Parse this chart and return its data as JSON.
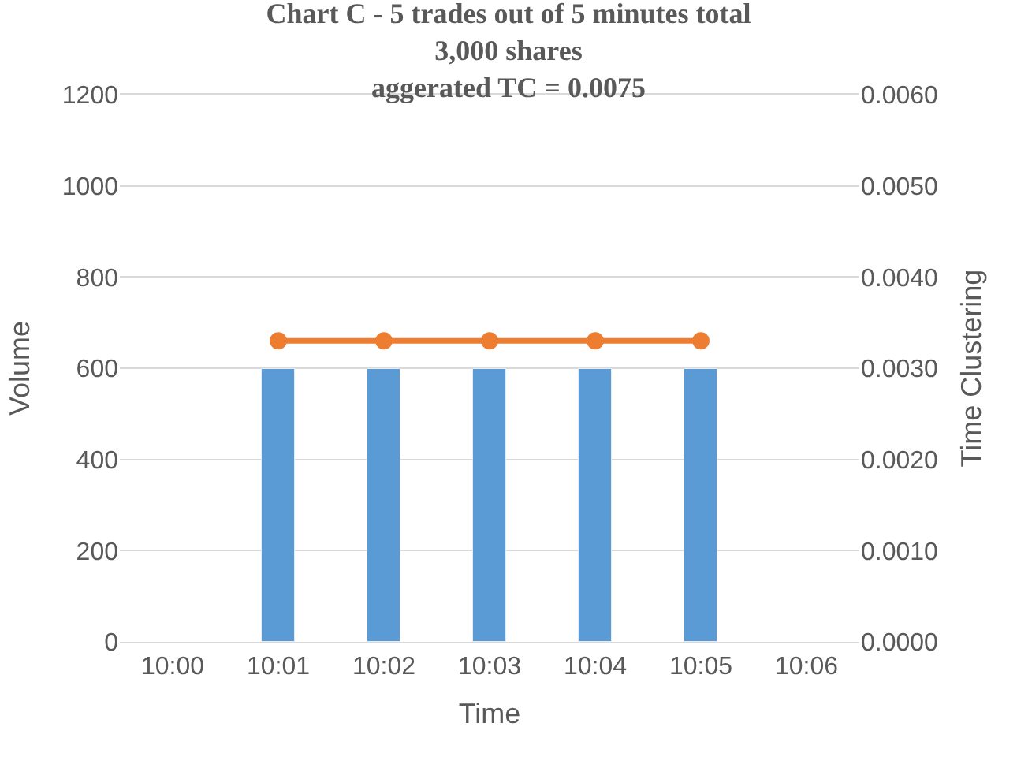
{
  "chart_data": {
    "type": "bar",
    "title": "Chart C - 5 trades out of 5 minutes total\n3,000 shares\naggerated TC = 0.0075",
    "xlabel": "Time",
    "ylabel": "Volume",
    "y2label": "Time Clustering",
    "categories": [
      "10:00",
      "10:01",
      "10:02",
      "10:03",
      "10:04",
      "10:05",
      "10:06"
    ],
    "series": [
      {
        "color": "#5b9bd5",
        "values": [
          null,
          600,
          600,
          600,
          600,
          600,
          null
        ]
      },
      {
        "type": "line",
        "axis": "y2",
        "color": "#ed7d31",
        "marker": "circle",
        "line_style": "solid",
        "values": [
          null,
          0.0033,
          0.0033,
          0.0033,
          0.0033,
          0.0033,
          null
        ]
      }
    ],
    "ylim": [
      0,
      1200
    ],
    "yticks": [
      0,
      200,
      400,
      600,
      800,
      1000,
      1200
    ],
    "y2lim": [
      0,
      0.006
    ],
    "y2ticks": [
      {
        "value": 0,
        "label": "0.0000"
      },
      {
        "value": 0.001,
        "label": "0.0010"
      },
      {
        "value": 0.002,
        "label": "0.0020"
      },
      {
        "value": 0.003,
        "label": "0.0030"
      },
      {
        "value": 0.004,
        "label": "0.0040"
      },
      {
        "value": 0.005,
        "label": "0.0050"
      },
      {
        "value": 0.006,
        "label": "0.0060"
      }
    ],
    "grid": "y",
    "legend": false
  }
}
